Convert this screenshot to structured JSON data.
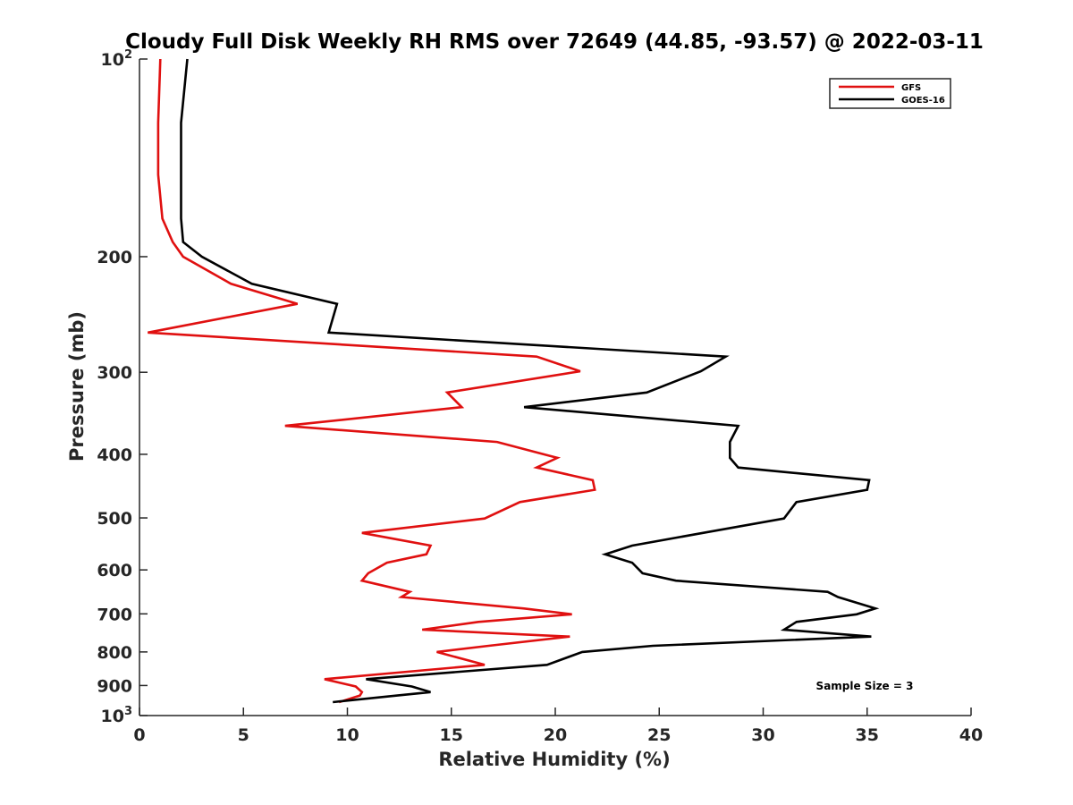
{
  "chart_data": {
    "type": "line",
    "title": "Cloudy Full Disk Weekly RH RMS over 72649 (44.85, -93.57) @ 2022-03-11",
    "xlabel": "Relative Humidity (%)",
    "ylabel": "Pressure (mb)",
    "xlim": [
      0,
      40
    ],
    "ylim": [
      100,
      1000
    ],
    "yscale": "log",
    "y_reversed": true,
    "xticks": [
      "0",
      "5",
      "10",
      "15",
      "20",
      "25",
      "30",
      "35",
      "40"
    ],
    "yticks": [
      {
        "value": 100,
        "base": "10",
        "exp": "2"
      },
      {
        "value": 200,
        "label": "200"
      },
      {
        "value": 300,
        "label": "300"
      },
      {
        "value": 400,
        "label": "400"
      },
      {
        "value": 500,
        "label": "500"
      },
      {
        "value": 600,
        "label": "600"
      },
      {
        "value": 700,
        "label": "700"
      },
      {
        "value": 800,
        "label": "800"
      },
      {
        "value": 900,
        "label": "900"
      },
      {
        "value": 1000,
        "base": "10",
        "exp": "3"
      }
    ],
    "grid": false,
    "legend_position": "top-right",
    "annotation": "Sample Size = 3",
    "series": [
      {
        "name": "GFS",
        "color": "#e01010",
        "points": [
          [
            1.0,
            100
          ],
          [
            0.9,
            125
          ],
          [
            0.9,
            150
          ],
          [
            1.1,
            175
          ],
          [
            1.6,
            190
          ],
          [
            2.1,
            200
          ],
          [
            4.4,
            220
          ],
          [
            7.6,
            236
          ],
          [
            0.4,
            261
          ],
          [
            19.1,
            284
          ],
          [
            21.2,
            299
          ],
          [
            14.8,
            322
          ],
          [
            15.5,
            339
          ],
          [
            7.0,
            362
          ],
          [
            17.2,
            383
          ],
          [
            20.1,
            405
          ],
          [
            19.1,
            419
          ],
          [
            21.8,
            438
          ],
          [
            21.9,
            453
          ],
          [
            18.3,
            473
          ],
          [
            16.6,
            501
          ],
          [
            10.7,
            527
          ],
          [
            14.0,
            551
          ],
          [
            13.8,
            568
          ],
          [
            11.9,
            585
          ],
          [
            11.0,
            607
          ],
          [
            10.7,
            623
          ],
          [
            13.0,
            648
          ],
          [
            12.6,
            660
          ],
          [
            18.5,
            687
          ],
          [
            20.8,
            701
          ],
          [
            16.3,
            720
          ],
          [
            13.6,
            740
          ],
          [
            20.7,
            758
          ],
          [
            16.8,
            783
          ],
          [
            14.3,
            800
          ],
          [
            16.6,
            837
          ],
          [
            8.9,
            880
          ],
          [
            10.4,
            903
          ],
          [
            10.7,
            921
          ],
          [
            10.6,
            932
          ],
          [
            9.6,
            954
          ]
        ]
      },
      {
        "name": "GOES-16",
        "color": "#000000",
        "points": [
          [
            2.3,
            100
          ],
          [
            2.0,
            125
          ],
          [
            2.0,
            150
          ],
          [
            2.0,
            175
          ],
          [
            2.1,
            190
          ],
          [
            3.0,
            200
          ],
          [
            5.4,
            220
          ],
          [
            9.5,
            236
          ],
          [
            9.1,
            261
          ],
          [
            28.2,
            284
          ],
          [
            27.0,
            299
          ],
          [
            24.4,
            322
          ],
          [
            18.5,
            339
          ],
          [
            28.8,
            362
          ],
          [
            28.4,
            383
          ],
          [
            28.4,
            405
          ],
          [
            28.8,
            419
          ],
          [
            35.1,
            438
          ],
          [
            35.0,
            453
          ],
          [
            31.6,
            473
          ],
          [
            31.0,
            501
          ],
          [
            27.1,
            527
          ],
          [
            23.7,
            551
          ],
          [
            22.4,
            568
          ],
          [
            23.7,
            585
          ],
          [
            24.2,
            607
          ],
          [
            25.8,
            623
          ],
          [
            33.1,
            648
          ],
          [
            33.6,
            660
          ],
          [
            35.4,
            687
          ],
          [
            34.5,
            701
          ],
          [
            31.6,
            720
          ],
          [
            31.0,
            740
          ],
          [
            35.2,
            758
          ],
          [
            24.7,
            783
          ],
          [
            21.3,
            800
          ],
          [
            19.6,
            837
          ],
          [
            10.9,
            880
          ],
          [
            13.1,
            903
          ],
          [
            14.0,
            921
          ],
          [
            12.4,
            932
          ],
          [
            9.3,
            954
          ]
        ]
      }
    ]
  }
}
